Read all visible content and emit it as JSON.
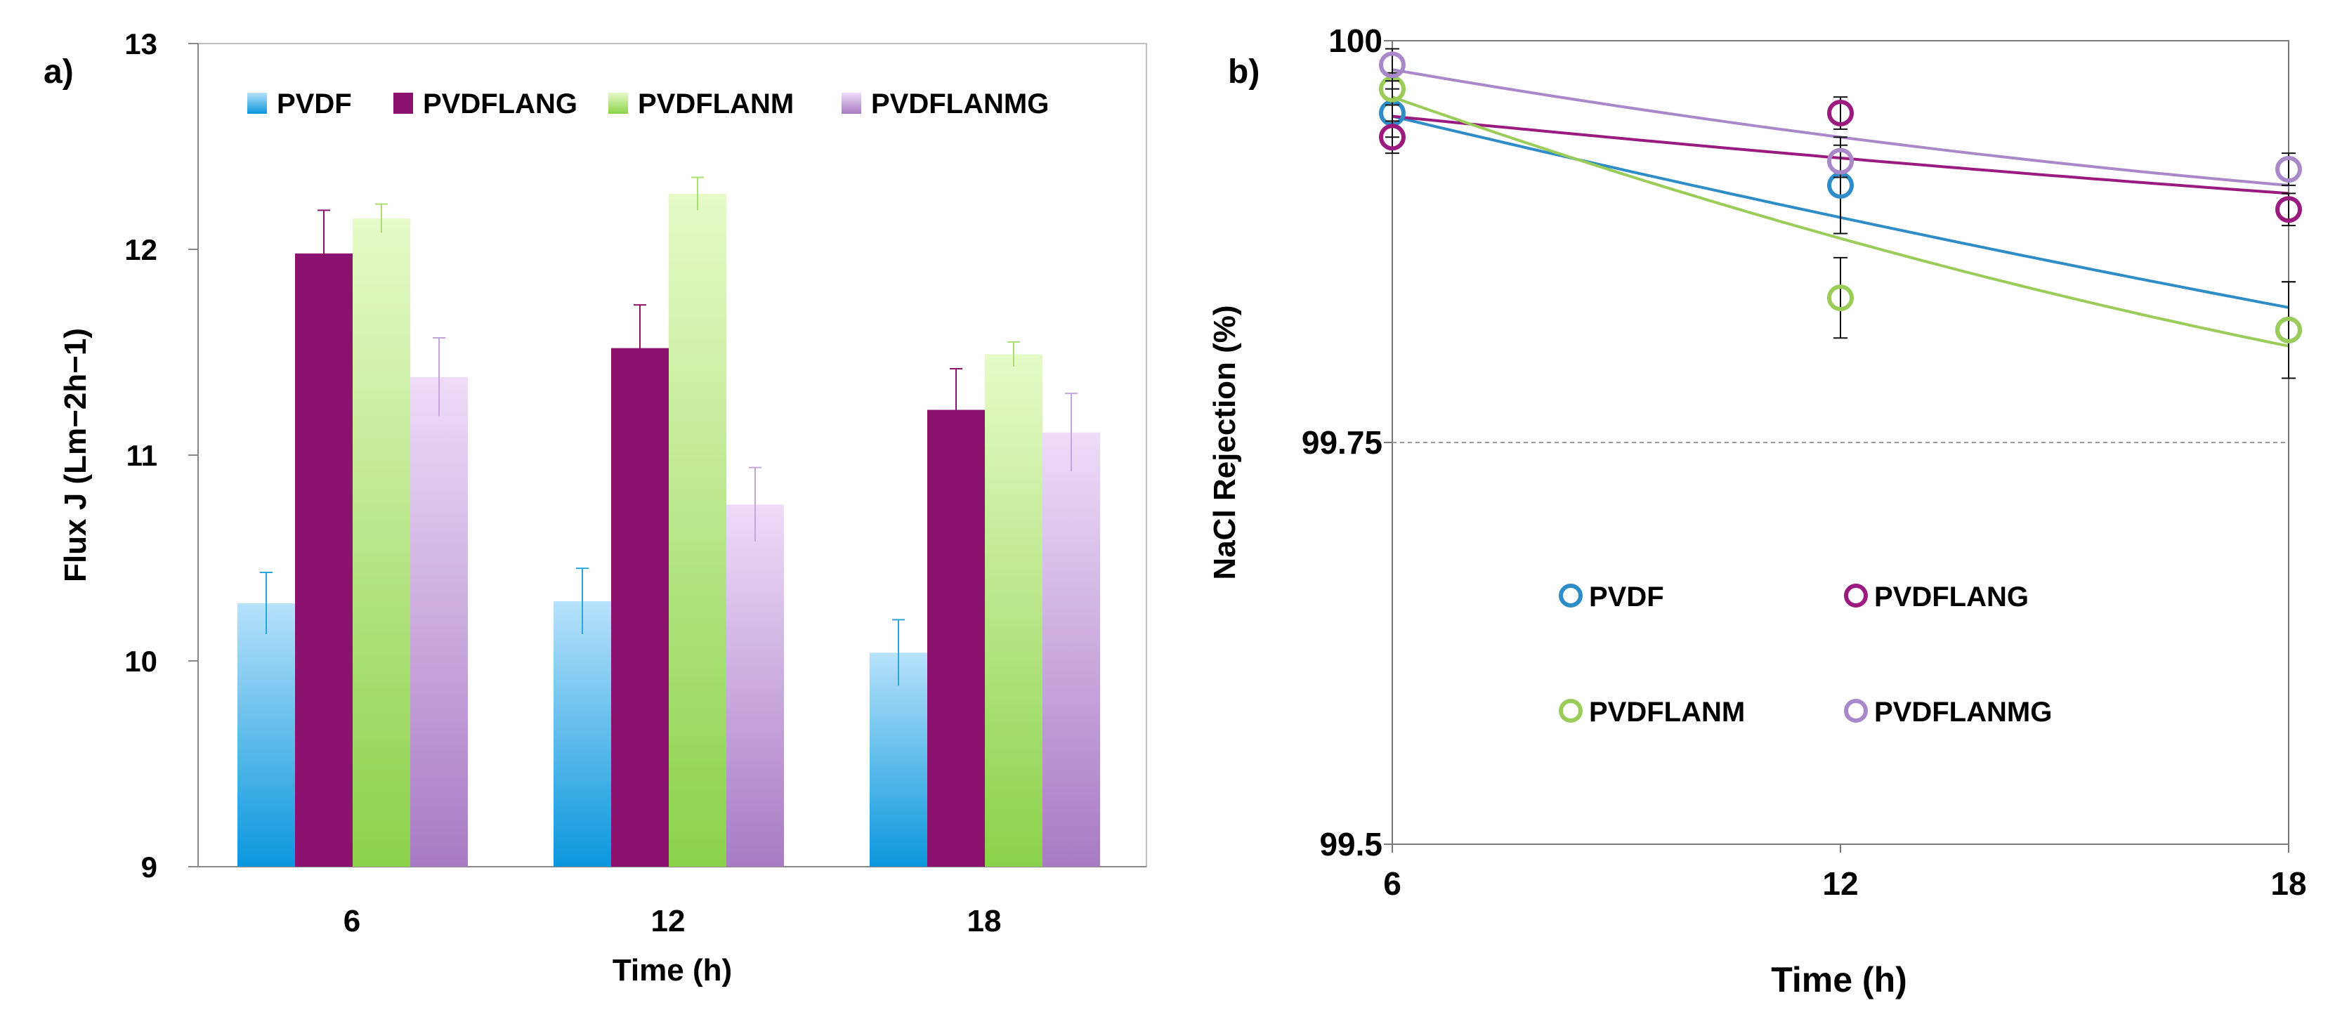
{
  "chart_data": [
    {
      "panel_label": "a)",
      "type": "bar",
      "xlabel": "Time (h)",
      "ylabel": "Flux J (Lm−2h−1)",
      "ylim": [
        9,
        13
      ],
      "yticks": [
        "9",
        "10",
        "11",
        "12",
        "13"
      ],
      "categories": [
        "6",
        "12",
        "18"
      ],
      "legend_position": "top",
      "series": [
        {
          "name": "PVDF",
          "color": "#2aa5e0",
          "values": [
            10.28,
            10.29,
            10.04
          ],
          "errors": [
            0.15,
            0.16,
            0.16
          ]
        },
        {
          "name": "PVDFLANG",
          "color": "#8e1471",
          "values": [
            11.98,
            11.52,
            11.22
          ],
          "errors": [
            0.21,
            0.21,
            0.2
          ]
        },
        {
          "name": "PVDFLANM",
          "color": "#a8df70",
          "values": [
            12.15,
            12.27,
            11.49
          ],
          "errors": [
            0.07,
            0.08,
            0.06
          ]
        },
        {
          "name": "PVDFLANMG",
          "color": "#c5a6dc",
          "values": [
            11.38,
            10.76,
            11.11
          ],
          "errors": [
            0.19,
            0.18,
            0.19
          ]
        }
      ]
    },
    {
      "panel_label": "b)",
      "type": "scatter",
      "xlabel": "Time (h)",
      "ylabel": "NaCl Rejection (%)",
      "xlim": [
        6,
        18
      ],
      "ylim": [
        99.5,
        100
      ],
      "xticks": [
        "6",
        "12",
        "18"
      ],
      "yticks": [
        "99.5",
        "99.75",
        "100"
      ],
      "reference_line": 99.75,
      "legend_position": "lower-middle",
      "series": [
        {
          "name": "PVDF",
          "color": "#2e8cc7",
          "x": [
            6,
            12,
            18
          ],
          "y": [
            99.955,
            99.91,
            99.82
          ],
          "errors": [
            0.015,
            0.03,
            0.03
          ],
          "fit": [
            99.953,
            99.89,
            99.834
          ]
        },
        {
          "name": "PVDFLANG",
          "color": "#9b1a7f",
          "x": [
            6,
            12,
            18
          ],
          "y": [
            99.94,
            99.955,
            99.895
          ],
          "errors": [
            0.01,
            0.01,
            0.01
          ],
          "fit": [
            99.953,
            99.927,
            99.905
          ]
        },
        {
          "name": "PVDFLANM",
          "color": "#9bcc5a",
          "x": [
            6,
            12,
            18
          ],
          "y": [
            99.97,
            99.84,
            99.82
          ],
          "errors": [
            0.01,
            0.025,
            0.03
          ],
          "fit": [
            99.965,
            99.877,
            99.81
          ]
        },
        {
          "name": "PVDFLANMG",
          "color": "#a988c9",
          "x": [
            6,
            12,
            18
          ],
          "y": [
            99.985,
            99.925,
            99.92
          ],
          "errors": [
            0.01,
            0.01,
            0.01
          ],
          "fit": [
            99.982,
            99.94,
            99.91
          ]
        }
      ]
    }
  ]
}
